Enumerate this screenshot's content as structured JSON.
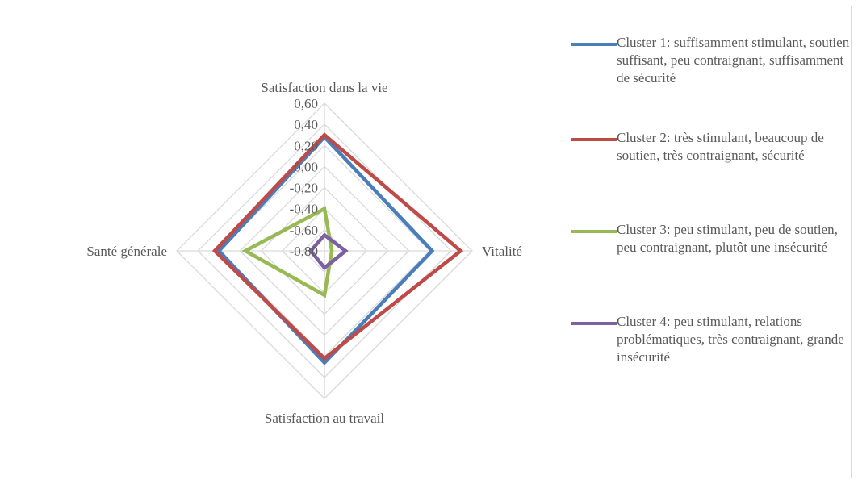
{
  "chart_data": {
    "type": "radar",
    "title": "",
    "axes": [
      "Satisfaction dans la vie",
      "Vitalité",
      "Satisfaction au travail",
      "Santé générale"
    ],
    "ticks": [
      "0,60",
      "0,40",
      "0,20",
      "0,00",
      "-0,20",
      "-0,40",
      "-0,60",
      "-0,80"
    ],
    "range": [
      -0.8,
      0.6
    ],
    "grid": true,
    "legend_position": "right",
    "series": [
      {
        "name": "Cluster 1: suffisamment stimulant, soutien suffisant, peu contraignant, suffisamment de sécurité",
        "color": "#4a7ebb",
        "values": [
          0.28,
          0.22,
          0.26,
          0.2
        ]
      },
      {
        "name": "Cluster 2: très stimulant, beaucoup de soutien, très contraignant, sécurité",
        "color": "#be4b48",
        "values": [
          0.3,
          0.49,
          0.22,
          0.24
        ]
      },
      {
        "name": "Cluster 3: peu stimulant, peu de soutien, peu contraignant, plutôt une insécurité",
        "color": "#98b954",
        "values": [
          -0.4,
          -0.73,
          -0.38,
          -0.05
        ]
      },
      {
        "name": "Cluster 4: peu stimulant, relations problématiques, très contraignant, grande insécurité",
        "color": "#7d60a0",
        "values": [
          -0.65,
          -0.6,
          -0.64,
          -0.67
        ]
      }
    ]
  }
}
